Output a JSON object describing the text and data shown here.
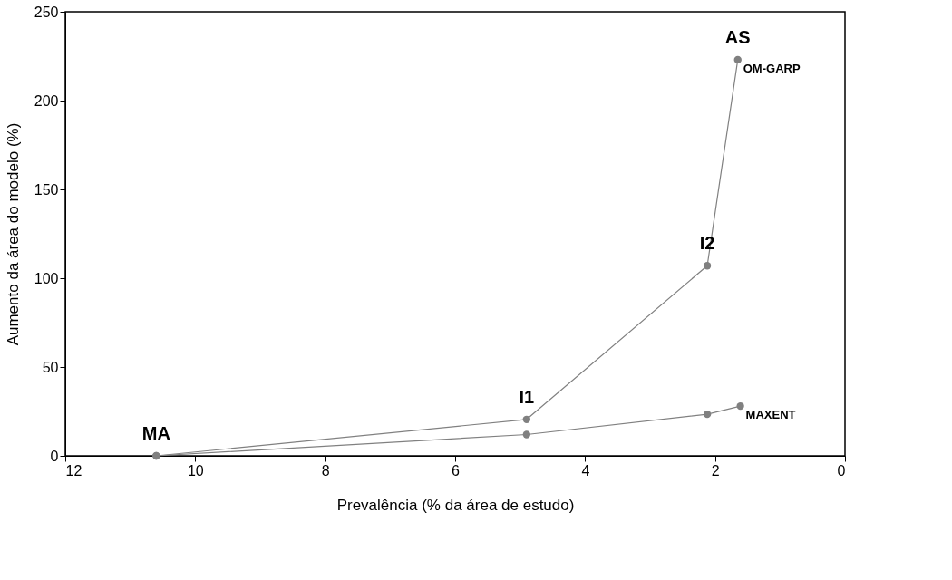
{
  "chart_data": {
    "type": "line",
    "xlabel": "Prevalência (% da área de estudo)",
    "ylabel": "Aumento da área do modelo (%)",
    "xlim": [
      12,
      0
    ],
    "xticks": [
      12,
      10,
      8,
      6,
      4,
      2,
      0
    ],
    "ylim": [
      0,
      250
    ],
    "yticks": [
      0,
      50,
      100,
      150,
      200,
      250
    ],
    "grid": false,
    "legend": false,
    "marker": "circle",
    "line_style": "solid",
    "series": [
      {
        "name": "OM-GARP",
        "color": "#808080",
        "x": [
          10.6,
          4.9,
          2.12,
          1.65
        ],
        "values": [
          0,
          20.5,
          107,
          223
        ]
      },
      {
        "name": "MAXENT",
        "color": "#808080",
        "x": [
          10.6,
          4.9,
          2.12,
          1.61
        ],
        "values": [
          0,
          12,
          23.4,
          28
        ]
      }
    ],
    "annotations": [
      {
        "text": "MA",
        "x": 10.6,
        "y": 0
      },
      {
        "text": "I1",
        "x": 4.9,
        "y": 20.5
      },
      {
        "text": "I2",
        "x": 2.12,
        "y": 107
      },
      {
        "text": "AS",
        "x": 1.65,
        "y": 223
      }
    ]
  }
}
